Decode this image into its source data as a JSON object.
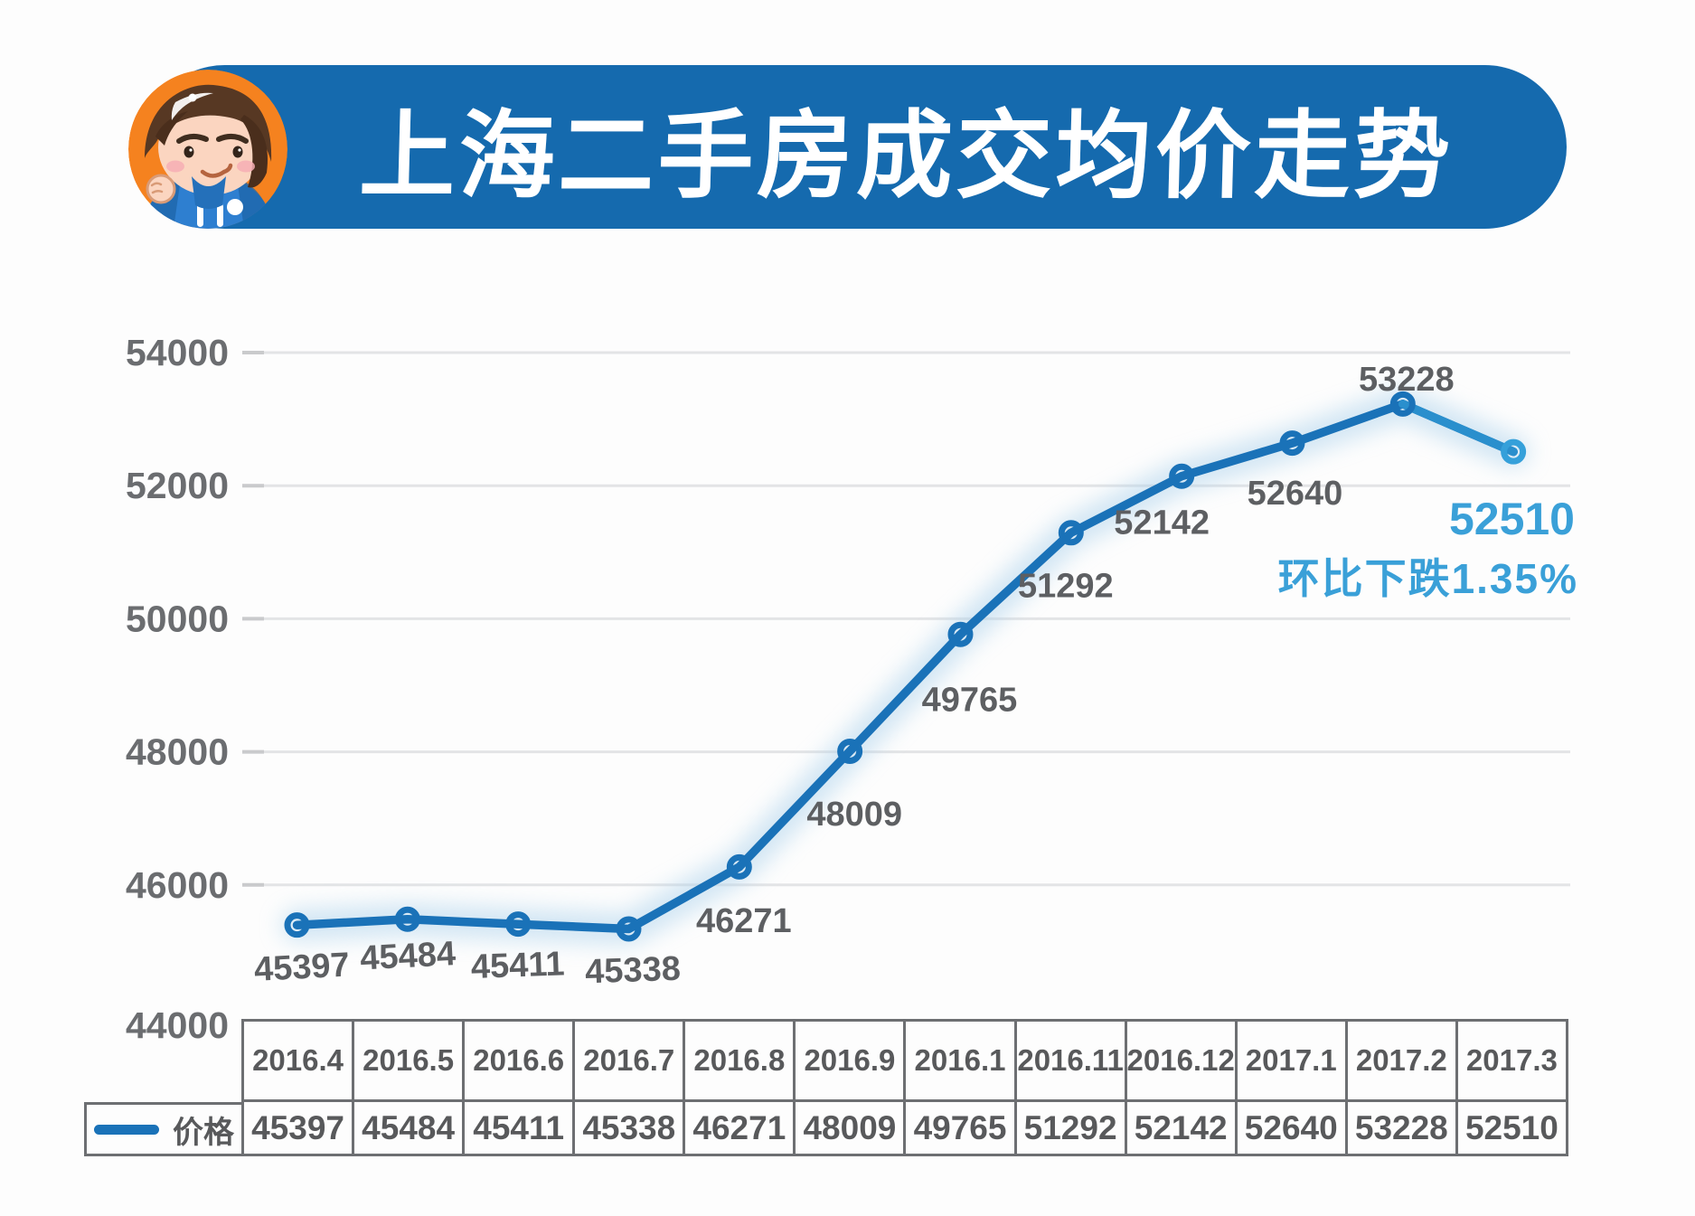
{
  "header": {
    "title": "上海二手房成交均价走势"
  },
  "chart_data": {
    "type": "line",
    "title": "上海二手房成交均价走势",
    "categories": [
      "2016.4",
      "2016.5",
      "2016.6",
      "2016.7",
      "2016.8",
      "2016.9",
      "2016.1",
      "2016.11",
      "2016.12",
      "2017.1",
      "2017.2",
      "2017.3"
    ],
    "series": [
      {
        "name": "价格",
        "values": [
          45397,
          45484,
          45411,
          45338,
          46271,
          48009,
          49765,
          51292,
          52142,
          52640,
          53228,
          52510
        ]
      }
    ],
    "ylim": [
      44000,
      54000
    ],
    "y_ticks": [
      54000,
      52000,
      50000,
      48000,
      46000,
      44000
    ],
    "grid": true,
    "legend_position": "bottom-left-table",
    "point_labels": [
      "45397",
      "45484",
      "45411",
      "45338",
      "46271",
      "48009",
      "49765",
      "51292",
      "52142",
      "52640",
      "53228",
      ""
    ],
    "annotation": {
      "value": "52510",
      "note": "环比下跌1.35%"
    }
  },
  "table": {
    "legend_label": "价格",
    "columns": [
      "2016.4",
      "2016.5",
      "2016.6",
      "2016.7",
      "2016.8",
      "2016.9",
      "2016.1",
      "2016.11",
      "2016.12",
      "2017.1",
      "2017.2",
      "2017.3"
    ],
    "rows": [
      {
        "label": "价格",
        "values": [
          "45397",
          "45484",
          "45411",
          "45338",
          "46271",
          "48009",
          "49765",
          "51292",
          "52142",
          "52640",
          "53228",
          "52510"
        ]
      }
    ]
  },
  "colors": {
    "banner_blue": "#156aae",
    "line_blue": "#1a72b8",
    "line_blue_light": "#2a8fcd",
    "marker_last": "#35a0da",
    "glow_blue": "#aed3ec",
    "highlight_blue": "#3aa0d8",
    "label_gray": "#5d5f62",
    "axis_gray": "#6b6d70",
    "grid_gray": "#e3e4e6",
    "tick_gray": "#c9cacc",
    "table_border": "#6d6f72",
    "table_text": "#58595b",
    "avatar_orange": "#f5821f"
  }
}
